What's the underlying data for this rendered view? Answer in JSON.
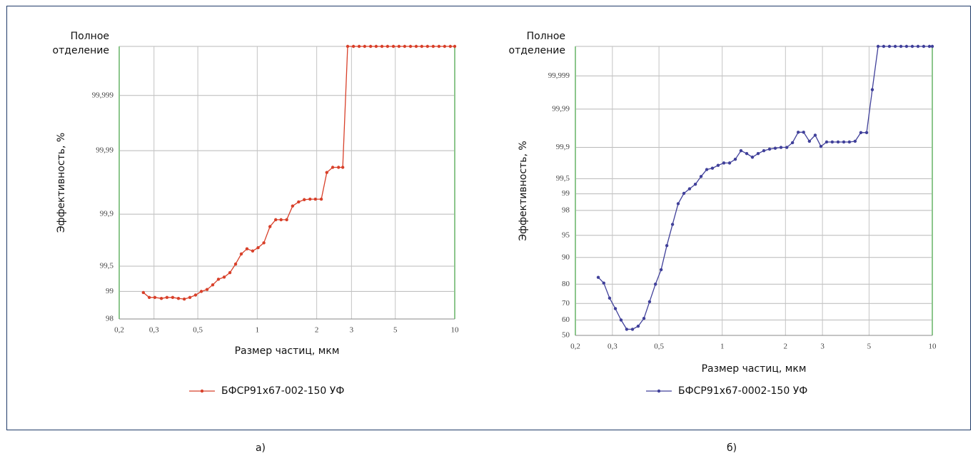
{
  "chart_data": [
    {
      "type": "line",
      "xlabel": "Размер частиц, мкм",
      "ylabel": "Эффективность, %",
      "x": [
        0.265,
        0.284,
        0.303,
        0.327,
        0.349,
        0.373,
        0.399,
        0.427,
        0.456,
        0.487,
        0.521,
        0.557,
        0.595,
        0.636,
        0.68,
        0.727,
        0.777,
        0.83,
        0.887,
        0.948,
        1.01,
        1.08,
        1.16,
        1.24,
        1.32,
        1.41,
        1.51,
        1.62,
        1.73,
        1.85,
        1.97,
        2.11,
        2.25,
        2.41,
        2.58,
        2.71,
        2.87,
        3.07,
        3.28,
        3.5,
        3.75,
        4.0,
        4.28,
        4.57,
        4.89,
        5.22,
        5.58,
        5.97,
        6.38,
        6.81,
        7.28,
        7.78,
        8.32,
        8.89,
        9.5,
        10
      ],
      "series": [
        {
          "name": "БФСР91х67-002-150 УФ",
          "color": "#d8402a",
          "values": [
            98.97,
            98.83,
            98.83,
            98.8,
            98.83,
            98.83,
            98.8,
            98.78,
            98.83,
            98.9,
            99.0,
            99.05,
            99.16,
            99.28,
            99.32,
            99.4,
            99.53,
            99.65,
            99.7,
            99.68,
            99.71,
            99.75,
            99.85,
            99.88,
            99.88,
            99.88,
            99.924,
            99.934,
            99.939,
            99.94,
            99.94,
            99.94,
            99.977,
            99.981,
            99.981,
            99.981,
            100,
            100,
            100,
            100,
            100,
            100,
            100,
            100,
            100,
            100,
            100,
            100,
            100,
            100,
            100,
            100,
            100,
            100,
            100,
            100
          ]
        }
      ],
      "xlim": [
        0.2,
        10
      ],
      "x_scale": "log",
      "xticks": [
        {
          "value": 0.2,
          "label": "0,2"
        },
        {
          "value": 0.3,
          "label": "0,3"
        },
        {
          "value": 0.5,
          "label": "0,5"
        },
        1,
        2,
        3,
        5,
        10
      ],
      "ylim": [
        98,
        100
      ],
      "y_scale": "probit",
      "yticks": [
        98,
        99,
        {
          "value": 99.5,
          "label": "99,5"
        },
        {
          "value": 99.9,
          "label": "99,9"
        },
        {
          "value": 99.99,
          "label": "99,99"
        },
        {
          "value": 99.999,
          "label": "99,999"
        },
        {
          "value": 100,
          "label": "Полное отделение"
        }
      ],
      "grid": true,
      "legend": "bottom"
    },
    {
      "type": "line",
      "xlabel": "Размер частиц, мкм",
      "ylabel": "Эффективность, %",
      "x": [
        0.257,
        0.273,
        0.291,
        0.31,
        0.33,
        0.351,
        0.374,
        0.398,
        0.424,
        0.451,
        0.481,
        0.512,
        0.545,
        0.58,
        0.617,
        0.657,
        0.699,
        0.745,
        0.793,
        0.844,
        0.898,
        0.956,
        1.018,
        1.084,
        1.154,
        1.228,
        1.308,
        1.392,
        1.482,
        1.578,
        1.68,
        1.788,
        1.904,
        2.03,
        2.16,
        2.3,
        2.44,
        2.6,
        2.77,
        2.95,
        3.14,
        3.34,
        3.56,
        3.79,
        4.03,
        4.29,
        4.57,
        4.87,
        5.18,
        5.52,
        5.87,
        6.25,
        6.66,
        7.09,
        7.54,
        8.03,
        8.55,
        9.1,
        9.69,
        10
      ],
      "series": [
        {
          "name": "БФСР91х67-0002-150 УФ",
          "color": "#40409a",
          "values": [
            83,
            80.5,
            73,
            67,
            60,
            54,
            54,
            56,
            61,
            71,
            80,
            86,
            93,
            96.6,
            98.48,
            99.02,
            99.2,
            99.35,
            99.55,
            99.68,
            99.7,
            99.74,
            99.77,
            99.77,
            99.81,
            99.88,
            99.86,
            99.83,
            99.86,
            99.88,
            99.89,
            99.895,
            99.9,
            99.9,
            99.923,
            99.958,
            99.958,
            99.929,
            99.95,
            99.905,
            99.926,
            99.926,
            99.926,
            99.926,
            99.926,
            99.929,
            99.957,
            99.957,
            99.9973,
            100,
            100,
            100,
            100,
            100,
            100,
            100,
            100,
            100,
            100,
            100
          ]
        }
      ],
      "xlim": [
        0.2,
        10
      ],
      "x_scale": "log",
      "xticks": [
        {
          "value": 0.2,
          "label": "0,2"
        },
        {
          "value": 0.3,
          "label": "0,3"
        },
        {
          "value": 0.5,
          "label": "0,5"
        },
        1,
        2,
        3,
        5,
        10
      ],
      "ylim": [
        50,
        100
      ],
      "y_scale": "probit",
      "yticks": [
        50,
        60,
        70,
        80,
        90,
        95,
        98,
        99,
        {
          "value": 99.5,
          "label": "99,5"
        },
        {
          "value": 99.9,
          "label": "99,9"
        },
        {
          "value": 99.99,
          "label": "99,99"
        },
        {
          "value": 99.999,
          "label": "99,999"
        },
        {
          "value": 100,
          "label": "Полное отделение"
        }
      ],
      "grid": true,
      "legend": "bottom"
    }
  ],
  "captions": [
    "а)",
    "б)"
  ]
}
